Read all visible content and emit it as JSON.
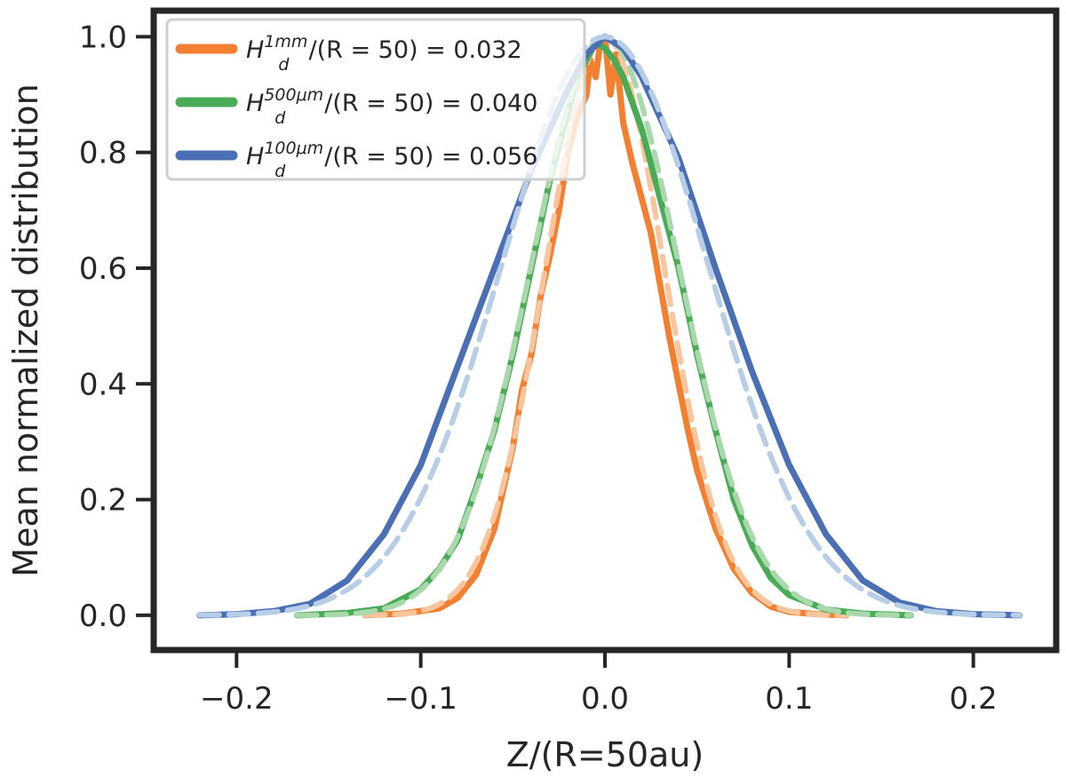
{
  "chart_data": {
    "type": "line",
    "xlabel": "Z/(R=50au)",
    "ylabel": "Mean normalized distribution",
    "xlim": [
      -0.245,
      0.245
    ],
    "ylim": [
      -0.06,
      1.045
    ],
    "xticks": [
      -0.2,
      -0.1,
      0.0,
      0.1,
      0.2
    ],
    "xtick_labels": [
      "−0.2",
      "−0.1",
      "0.0",
      "0.1",
      "0.2"
    ],
    "yticks": [
      0.0,
      0.2,
      0.4,
      0.6,
      0.8,
      1.0
    ],
    "ytick_labels": [
      "0.0",
      "0.2",
      "0.4",
      "0.6",
      "0.8",
      "1.0"
    ],
    "grid": false,
    "legend_position": "top-left",
    "series": [
      {
        "name": "H_d^{1mm}/(R = 50) = 0.032",
        "legend": {
          "base": "H",
          "sub": "d",
          "sup": "1mm",
          "rest": "/(R = 50) = 0.032"
        },
        "color": "#f28030",
        "fit_color": "#f8c59c",
        "range": [
          -0.13,
          0.131
        ],
        "points": [
          [
            -0.13,
            0.0
          ],
          [
            -0.11,
            0.003
          ],
          [
            -0.09,
            0.012
          ],
          [
            -0.08,
            0.03
          ],
          [
            -0.07,
            0.07
          ],
          [
            -0.06,
            0.15
          ],
          [
            -0.05,
            0.29
          ],
          [
            -0.045,
            0.39
          ],
          [
            -0.04,
            0.45
          ],
          [
            -0.035,
            0.55
          ],
          [
            -0.03,
            0.62
          ],
          [
            -0.025,
            0.7
          ],
          [
            -0.02,
            0.8
          ],
          [
            -0.015,
            0.86
          ],
          [
            -0.01,
            0.9
          ],
          [
            -0.008,
            0.96
          ],
          [
            -0.005,
            0.93
          ],
          [
            -0.003,
            0.98
          ],
          [
            0.0,
            1.0
          ],
          [
            0.003,
            0.9
          ],
          [
            0.006,
            0.97
          ],
          [
            0.01,
            0.85
          ],
          [
            0.015,
            0.78
          ],
          [
            0.02,
            0.72
          ],
          [
            0.025,
            0.66
          ],
          [
            0.03,
            0.57
          ],
          [
            0.035,
            0.48
          ],
          [
            0.04,
            0.4
          ],
          [
            0.045,
            0.32
          ],
          [
            0.05,
            0.25
          ],
          [
            0.06,
            0.15
          ],
          [
            0.07,
            0.08
          ],
          [
            0.08,
            0.038
          ],
          [
            0.09,
            0.015
          ],
          [
            0.1,
            0.006
          ],
          [
            0.115,
            0.002
          ],
          [
            0.131,
            0.0
          ]
        ],
        "fit_sigma": 0.032
      },
      {
        "name": "H_d^{500μm}/(R = 50) = 0.040",
        "legend": {
          "base": "H",
          "sub": "d",
          "sup": "500μm",
          "rest": "/(R = 50) = 0.040"
        },
        "color": "#4aab57",
        "fit_color": "#a8d8ab",
        "range": [
          -0.167,
          0.166
        ],
        "points": [
          [
            -0.167,
            0.0
          ],
          [
            -0.14,
            0.004
          ],
          [
            -0.12,
            0.012
          ],
          [
            -0.1,
            0.045
          ],
          [
            -0.09,
            0.08
          ],
          [
            -0.08,
            0.13
          ],
          [
            -0.07,
            0.22
          ],
          [
            -0.06,
            0.32
          ],
          [
            -0.05,
            0.45
          ],
          [
            -0.04,
            0.6
          ],
          [
            -0.03,
            0.75
          ],
          [
            -0.02,
            0.87
          ],
          [
            -0.015,
            0.93
          ],
          [
            -0.01,
            0.96
          ],
          [
            -0.005,
            0.99
          ],
          [
            0.0,
            0.98
          ],
          [
            0.005,
            0.96
          ],
          [
            0.01,
            0.93
          ],
          [
            0.02,
            0.84
          ],
          [
            0.03,
            0.72
          ],
          [
            0.04,
            0.6
          ],
          [
            0.05,
            0.45
          ],
          [
            0.06,
            0.32
          ],
          [
            0.07,
            0.2
          ],
          [
            0.08,
            0.12
          ],
          [
            0.09,
            0.065
          ],
          [
            0.1,
            0.035
          ],
          [
            0.12,
            0.01
          ],
          [
            0.14,
            0.003
          ],
          [
            0.166,
            0.0
          ]
        ],
        "fit_sigma": 0.04
      },
      {
        "name": "H_d^{100μm}/(R = 50) = 0.056",
        "legend": {
          "base": "H",
          "sub": "d",
          "sup": "100μm",
          "rest": "/(R = 50) = 0.056"
        },
        "color": "#4a6fb5",
        "fit_color": "#b8cde6",
        "range": [
          -0.22,
          0.225
        ],
        "points": [
          [
            -0.22,
            0.0
          ],
          [
            -0.2,
            0.002
          ],
          [
            -0.18,
            0.007
          ],
          [
            -0.16,
            0.02
          ],
          [
            -0.14,
            0.06
          ],
          [
            -0.12,
            0.14
          ],
          [
            -0.1,
            0.26
          ],
          [
            -0.08,
            0.43
          ],
          [
            -0.06,
            0.6
          ],
          [
            -0.04,
            0.77
          ],
          [
            -0.02,
            0.91
          ],
          [
            -0.01,
            0.97
          ],
          [
            0.0,
            1.0
          ],
          [
            0.01,
            0.98
          ],
          [
            0.02,
            0.93
          ],
          [
            0.04,
            0.79
          ],
          [
            0.06,
            0.6
          ],
          [
            0.08,
            0.42
          ],
          [
            0.1,
            0.26
          ],
          [
            0.12,
            0.14
          ],
          [
            0.14,
            0.06
          ],
          [
            0.16,
            0.022
          ],
          [
            0.18,
            0.007
          ],
          [
            0.2,
            0.002
          ],
          [
            0.225,
            0.0
          ]
        ],
        "fit_sigma": 0.056
      }
    ]
  }
}
